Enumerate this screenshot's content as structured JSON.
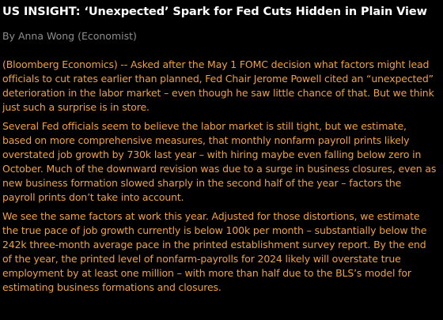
{
  "article": {
    "headline": "US INSIGHT: ‘Unexpected’ Spark for Fed Cuts Hidden in Plain View",
    "byline": "By Anna Wong (Economist)",
    "paragraphs": [
      "(Bloomberg Economics) -- Asked after the May 1 FOMC decision what factors might lead officials to cut rates earlier than planned, Fed Chair Jerome Powell cited an “unexpected” deterioration in the labor market – even though he saw little chance of that. But we think just such a surprise is in store.",
      "Several Fed officials seem to believe the labor market is still tight, but we estimate, based on more comprehensive measures, that monthly nonfarm payroll prints likely overstated job growth by 730k last year – with hiring maybe even falling below zero in October. Much of the downward revision was due to a surge in business closures, even as new business formation slowed sharply in the second half of the year – factors the payroll prints don’t take into account.",
      "We see the same factors at work this year. Adjusted for those distortions, we estimate the true pace of job growth currently is below 100k per month – substantially below the 242k three-month average pace in the printed establishment survey report. By the end of the year, the printed level of nonfarm-payrolls for 2024 likely will overstate true employment by at least one million – with more than half due to the BLS’s model for estimating business formations and closures."
    ]
  },
  "colors": {
    "background": "#000000",
    "headline": "#ffffff",
    "byline": "#8e8e8e",
    "body_text": "#f0a040"
  }
}
